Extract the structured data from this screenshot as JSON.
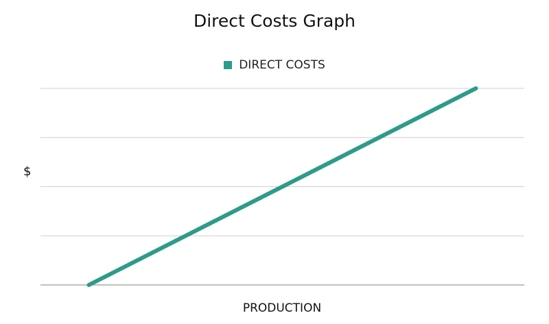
{
  "chart_data": {
    "type": "line",
    "title": "Direct Costs Graph",
    "xlabel": "PRODUCTION",
    "ylabel": "$",
    "legend": {
      "placement": "top-center",
      "entries": [
        "DIRECT COSTS"
      ]
    },
    "grid": true,
    "gridline_count": 5,
    "xlim": [
      0,
      1
    ],
    "ylim": [
      0,
      4
    ],
    "series": [
      {
        "name": "DIRECT COSTS",
        "color": "#2e9b8a",
        "x": [
          0.1,
          0.9
        ],
        "y": [
          0,
          4
        ]
      }
    ]
  }
}
